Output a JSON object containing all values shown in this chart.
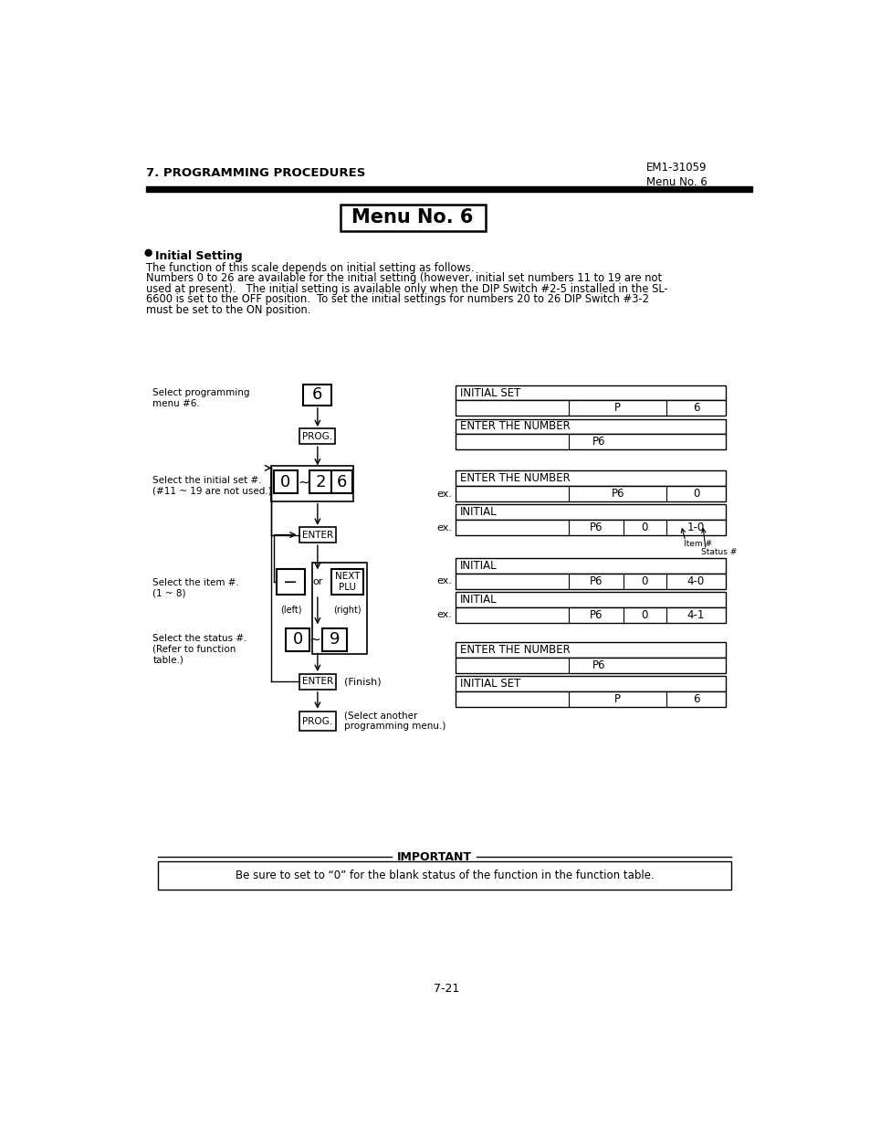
{
  "header_left": "7. PROGRAMMING PROCEDURES",
  "header_right_top": "EM1-31059",
  "header_right_bot": "Menu No. 6",
  "title": "Menu No. 6",
  "bullet_title": "Initial Setting",
  "body_text_line1": "The function of this scale depends on initial setting as follows.",
  "body_text_line2": "Numbers 0 to 26 are available for the initial setting (however, initial set numbers 11 to 19 are not",
  "body_text_line3": "used at present).   The initial setting is available only when the DIP Switch #2-5 installed in the SL-",
  "body_text_line4": "6600 is set to the OFF position.  To set the initial settings for numbers 20 to 26 DIP Switch #3-2",
  "body_text_line5": "must be set to the ON position.",
  "lbl1": "Select programming\nmenu #6.",
  "lbl2": "Select the initial set #.\n(#11 ~ 19 are not used.)",
  "lbl3": "Select the item #.\n(1 ~ 8)",
  "lbl4": "Select the status #.\n(Refer to function\ntable.)",
  "footer_text": "7-21",
  "important_title": "IMPORTANT",
  "important_body": "Be sure to set to “0” for the blank status of the function in the function table.",
  "bg_color": "#ffffff",
  "text_color": "#000000"
}
